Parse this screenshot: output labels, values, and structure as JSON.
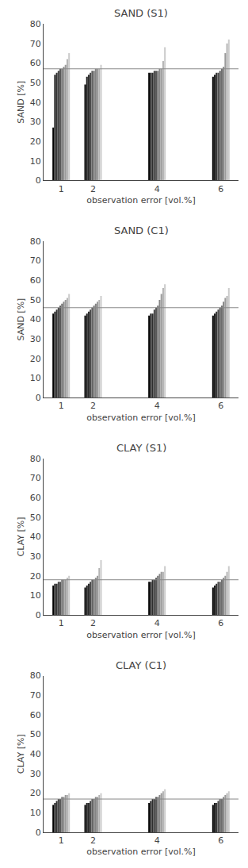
{
  "chart_data": [
    {
      "type": "bar",
      "title": "SAND (S1)",
      "xlabel": "observation error [vol.%]",
      "ylabel": "SAND [%]",
      "x": [
        1,
        2,
        4,
        6
      ],
      "xlim": [
        0.45,
        6.55
      ],
      "xticks": [
        1,
        2,
        4,
        6
      ],
      "ylim": [
        0,
        80
      ],
      "yticks": [
        0,
        10,
        20,
        30,
        40,
        50,
        60,
        70,
        80
      ],
      "grid": false,
      "hline": 57,
      "series": [
        {
          "color": "#000000",
          "values": [
            27,
            49,
            55,
            53
          ]
        },
        {
          "color": "#1a1a1a",
          "values": [
            54,
            53,
            55,
            54
          ]
        },
        {
          "color": "#2e2e2e",
          "values": [
            55,
            54,
            55,
            55
          ]
        },
        {
          "color": "#444444",
          "values": [
            56,
            55,
            56,
            55
          ]
        },
        {
          "color": "#585858",
          "values": [
            57,
            56,
            56,
            56
          ]
        },
        {
          "color": "#6e6e6e",
          "values": [
            57,
            56,
            56,
            57
          ]
        },
        {
          "color": "#848484",
          "values": [
            58,
            57,
            57,
            58
          ]
        },
        {
          "color": "#9a9a9a",
          "values": [
            59,
            57,
            57,
            65
          ]
        },
        {
          "color": "#b4b4b4",
          "values": [
            62,
            57,
            61,
            70
          ]
        },
        {
          "color": "#cccccc",
          "values": [
            65,
            59,
            68,
            72
          ]
        }
      ]
    },
    {
      "type": "bar",
      "title": "SAND (C1)",
      "xlabel": "observation error [vol.%]",
      "ylabel": "SAND [%]",
      "x": [
        1,
        2,
        4,
        6
      ],
      "xlim": [
        0.45,
        6.55
      ],
      "xticks": [
        1,
        2,
        4,
        6
      ],
      "ylim": [
        0,
        80
      ],
      "yticks": [
        0,
        10,
        20,
        30,
        40,
        50,
        60,
        70,
        80
      ],
      "grid": false,
      "hline": 46,
      "series": [
        {
          "color": "#000000",
          "values": [
            43,
            42,
            42,
            42
          ]
        },
        {
          "color": "#1a1a1a",
          "values": [
            44,
            43,
            43,
            43
          ]
        },
        {
          "color": "#2e2e2e",
          "values": [
            45,
            44,
            43,
            44
          ]
        },
        {
          "color": "#444444",
          "values": [
            46,
            45,
            45,
            45
          ]
        },
        {
          "color": "#585858",
          "values": [
            47,
            46,
            46,
            46
          ]
        },
        {
          "color": "#6e6e6e",
          "values": [
            48,
            47,
            47,
            47
          ]
        },
        {
          "color": "#848484",
          "values": [
            49,
            48,
            50,
            49
          ]
        },
        {
          "color": "#9a9a9a",
          "values": [
            50,
            49,
            53,
            51
          ]
        },
        {
          "color": "#b4b4b4",
          "values": [
            51,
            50,
            56,
            52
          ]
        },
        {
          "color": "#cccccc",
          "values": [
            53,
            52,
            58,
            56
          ]
        }
      ]
    },
    {
      "type": "bar",
      "title": "CLAY (S1)",
      "xlabel": "observation error [vol.%]",
      "ylabel": "CLAY [%]",
      "x": [
        1,
        2,
        4,
        6
      ],
      "xlim": [
        0.45,
        6.55
      ],
      "xticks": [
        1,
        2,
        4,
        6
      ],
      "ylim": [
        0,
        80
      ],
      "yticks": [
        0,
        10,
        20,
        30,
        40,
        50,
        60,
        70,
        80
      ],
      "grid": false,
      "hline": 18,
      "series": [
        {
          "color": "#000000",
          "values": [
            15,
            14,
            17,
            14
          ]
        },
        {
          "color": "#1a1a1a",
          "values": [
            16,
            15,
            17,
            15
          ]
        },
        {
          "color": "#2e2e2e",
          "values": [
            16,
            16,
            18,
            16
          ]
        },
        {
          "color": "#444444",
          "values": [
            17,
            17,
            18,
            17
          ]
        },
        {
          "color": "#585858",
          "values": [
            17,
            18,
            19,
            17
          ]
        },
        {
          "color": "#6e6e6e",
          "values": [
            18,
            18,
            20,
            18
          ]
        },
        {
          "color": "#848484",
          "values": [
            18,
            19,
            21,
            19
          ]
        },
        {
          "color": "#9a9a9a",
          "values": [
            18,
            20,
            22,
            20
          ]
        },
        {
          "color": "#b4b4b4",
          "values": [
            19,
            24,
            22,
            22
          ]
        },
        {
          "color": "#cccccc",
          "values": [
            20,
            28,
            25,
            25
          ]
        }
      ]
    },
    {
      "type": "bar",
      "title": "CLAY (C1)",
      "xlabel": "observation error [vol.%]",
      "ylabel": "CLAY [%]",
      "x": [
        1,
        2,
        4,
        6
      ],
      "xlim": [
        0.45,
        6.55
      ],
      "xticks": [
        1,
        2,
        4,
        6
      ],
      "ylim": [
        0,
        80
      ],
      "yticks": [
        0,
        10,
        20,
        30,
        40,
        50,
        60,
        70,
        80
      ],
      "grid": false,
      "hline": 17,
      "series": [
        {
          "color": "#000000",
          "values": [
            14,
            14,
            15,
            14
          ]
        },
        {
          "color": "#1a1a1a",
          "values": [
            15,
            15,
            16,
            15
          ]
        },
        {
          "color": "#2e2e2e",
          "values": [
            16,
            15,
            17,
            15
          ]
        },
        {
          "color": "#444444",
          "values": [
            17,
            16,
            17,
            16
          ]
        },
        {
          "color": "#585858",
          "values": [
            17,
            17,
            18,
            17
          ]
        },
        {
          "color": "#6e6e6e",
          "values": [
            18,
            17,
            18,
            17
          ]
        },
        {
          "color": "#848484",
          "values": [
            18,
            18,
            19,
            18
          ]
        },
        {
          "color": "#9a9a9a",
          "values": [
            19,
            18,
            20,
            19
          ]
        },
        {
          "color": "#b4b4b4",
          "values": [
            19,
            19,
            21,
            20
          ]
        },
        {
          "color": "#cccccc",
          "values": [
            20,
            20,
            22,
            21
          ]
        }
      ]
    }
  ]
}
